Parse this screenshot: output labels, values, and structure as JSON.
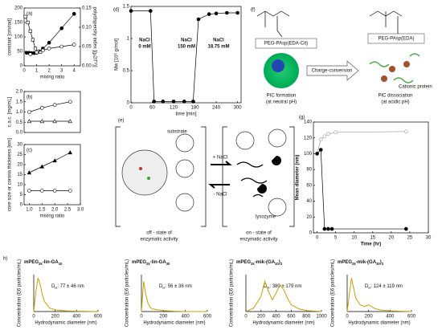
{
  "chart_data": [
    {
      "type": "line",
      "label": "(a)",
      "frame": true,
      "xlabel": "mixing ratio",
      "ylabel": "constant [cm/rad]",
      "y2label": "polydispersity index [(μ2/Γ²)]",
      "xlim": [
        0,
        4.5
      ],
      "xticks": [
        0,
        1,
        2,
        3,
        4
      ],
      "ylim": [
        0,
        200
      ],
      "yticks": [
        0,
        50,
        100,
        150,
        200
      ],
      "y2lim": [
        0,
        0.15
      ],
      "y2ticks": [
        {
          "value": 0,
          "label": "0.00"
        },
        0.05,
        {
          "value": 0.1,
          "label": "0.10"
        },
        0.15
      ],
      "series": [
        {
          "color": "#000000",
          "marker": "circle",
          "filled": true,
          "x": [
            0.2,
            0.4,
            0.6,
            0.8,
            1.0,
            1.2,
            1.5,
            2,
            3,
            4
          ],
          "values": [
            45,
            45,
            44,
            44,
            45,
            50,
            60,
            80,
            130,
            180
          ]
        },
        {
          "color": "#000000",
          "marker": "square",
          "filled": false,
          "x": [
            0.1,
            0.3,
            0.5,
            0.7,
            0.9,
            1.1,
            1.3
          ],
          "values": [
            170,
            150,
            120,
            90,
            60,
            50,
            48
          ]
        },
        {
          "color": "#000000",
          "marker": "circle",
          "filled": false,
          "axis": "y2",
          "x": [
            0.5,
            1,
            1.5,
            2,
            3,
            4
          ],
          "values": [
            0.03,
            0.035,
            0.04,
            0.045,
            0.05,
            0.055
          ]
        }
      ]
    },
    {
      "type": "line",
      "label": "(b)",
      "frame": true,
      "ylabel": "c.a.c. [mg/mL]",
      "xlim": [
        0.8,
        3.0
      ],
      "ylim": [
        0,
        2
      ],
      "yticks": [
        {
          "value": 0,
          "label": "0.0"
        },
        0.5,
        {
          "value": 1,
          "label": "1.0"
        },
        1.5,
        {
          "value": 2,
          "label": "2.0"
        }
      ],
      "series": [
        {
          "color": "#000000",
          "marker": "circle",
          "filled": false,
          "x": [
            1.0,
            1.5,
            2.0,
            2.6
          ],
          "values": [
            1.0,
            1.2,
            1.35,
            1.5
          ]
        },
        {
          "color": "#000000",
          "marker": "triangle",
          "filled": false,
          "x": [
            1.0,
            1.5,
            2.0,
            2.6
          ],
          "values": [
            0.55,
            0.55,
            0.55,
            0.55
          ]
        }
      ]
    },
    {
      "type": "line",
      "label": "(c)",
      "frame": true,
      "xlabel": "mixing ratio",
      "ylabel": "core size or corona thickness [nm]",
      "xlim": [
        0.8,
        3.0
      ],
      "xticks": [
        {
          "value": 1,
          "label": "1.0"
        },
        1.5,
        {
          "value": 2,
          "label": "2.0"
        },
        2.5,
        {
          "value": 3,
          "label": "3.0"
        }
      ],
      "ylim": [
        0,
        30
      ],
      "yticks": [
        0,
        5,
        10,
        15,
        20,
        25,
        30
      ],
      "series": [
        {
          "color": "#000000",
          "marker": "triangle",
          "filled": true,
          "x": [
            1.0,
            1.5,
            2.0,
            2.6
          ],
          "values": [
            16,
            19,
            22,
            26
          ]
        },
        {
          "color": "#000000",
          "marker": "circle",
          "filled": false,
          "x": [
            1.0,
            1.5,
            2.0,
            2.6
          ],
          "values": [
            7,
            7,
            7,
            7
          ]
        }
      ]
    },
    {
      "type": "line",
      "label": "(d)",
      "frame": true,
      "xlabel": "time [min]",
      "ylabel": "Mw [10⁶ g/mol]",
      "xlim": [
        0,
        310
      ],
      "xticks": [
        0,
        60,
        120,
        180,
        240,
        300
      ],
      "ylim": [
        0,
        1.5
      ],
      "yticks": [
        0,
        0.5,
        1,
        1.5
      ],
      "annotations": [
        [
          "NaCl",
          "0 mM"
        ],
        [
          "NaCl",
          "150 mM"
        ],
        [
          "NaCl",
          "18.75 mM"
        ]
      ],
      "series": [
        {
          "color": "#000000",
          "marker": "circle",
          "filled": true,
          "x": [
            0,
            55,
            65,
            90,
            120,
            150,
            175,
            190,
            220,
            240,
            270,
            300
          ],
          "values": [
            1.43,
            1.43,
            0.02,
            0.02,
            0.02,
            0.02,
            0.02,
            1.3,
            1.38,
            1.39,
            1.4,
            1.4
          ]
        }
      ]
    },
    {
      "type": "line",
      "label": "(g)",
      "frame": true,
      "xlabel": "Time (hr)",
      "ylabel": "Mean diameter (nm)",
      "xlim": [
        -1,
        30
      ],
      "xticks": [
        0,
        5,
        10,
        15,
        20,
        25,
        30
      ],
      "ylim": [
        0,
        140
      ],
      "yticks": [
        0,
        20,
        40,
        60,
        80,
        100,
        120,
        140
      ],
      "series": [
        {
          "color": "#999999",
          "marker": "circle",
          "filled": false,
          "x": [
            0,
            1,
            2,
            3,
            5,
            24
          ],
          "values": [
            100,
            118,
            122,
            125,
            127,
            128
          ]
        },
        {
          "color": "#000000",
          "marker": "circle",
          "filled": true,
          "x": [
            0,
            1,
            2,
            3,
            4,
            24
          ],
          "values": [
            100,
            105,
            5,
            5,
            5,
            5
          ]
        }
      ]
    },
    {
      "type": "line",
      "label": "h)",
      "frame": false,
      "xlabel": "Hydrodynamic diameter (nm)",
      "ylabel": "Concentration (E6 particles/mL)",
      "title": [
        {
          "text": "mPEG"
        },
        {
          "text": "2k",
          "sub": true
        },
        {
          "text": "-lin-GA"
        },
        {
          "text": "10",
          "sub": true
        }
      ],
      "annotation": [
        {
          "text": "D"
        },
        {
          "text": "H",
          "sub": true
        },
        {
          "text": ": 77 ± 46 nm"
        }
      ],
      "xlim": [
        0,
        600
      ],
      "xticks": [
        0,
        200,
        400,
        600
      ],
      "ylim": [
        0,
        1.1
      ],
      "series": [
        {
          "color": "#c8a200",
          "x": [
            0,
            20,
            40,
            60,
            80,
            100,
            150,
            200,
            300,
            400,
            600
          ],
          "values": [
            0,
            0.6,
            1.0,
            0.8,
            0.5,
            0.3,
            0.1,
            0.05,
            0.02,
            0.01,
            0
          ]
        }
      ]
    },
    {
      "type": "line",
      "frame": false,
      "xlabel": "Hydrodynamic diameter (nm)",
      "ylabel": "Concentration (E6 particles/mL)",
      "title": [
        {
          "text": "mPEG"
        },
        {
          "text": "2k",
          "sub": true
        },
        {
          "text": "-lin-GA"
        },
        {
          "text": "30",
          "sub": true
        }
      ],
      "annotation": [
        {
          "text": "D"
        },
        {
          "text": "H",
          "sub": true
        },
        {
          "text": ": 56 ± 36 nm"
        }
      ],
      "xlim": [
        0,
        600
      ],
      "xticks": [
        0,
        200,
        400,
        600
      ],
      "ylim": [
        0,
        1.1
      ],
      "series": [
        {
          "color": "#c8a200",
          "x": [
            0,
            20,
            40,
            60,
            80,
            100,
            150,
            200,
            300,
            400,
            600
          ],
          "values": [
            0,
            0.9,
            0.5,
            0.25,
            0.12,
            0.08,
            0.05,
            0.03,
            0.01,
            0,
            0
          ]
        }
      ]
    },
    {
      "type": "line",
      "frame": false,
      "xlabel": "Hydrodynamic diameter (nm)",
      "ylabel": "Concentration (E6 particles/mL)",
      "title": [
        {
          "text": "mPEG"
        },
        {
          "text": "2k",
          "sub": true
        },
        {
          "text": "-mik-(GA"
        },
        {
          "text": "10",
          "sub": true
        },
        {
          "text": ")"
        },
        {
          "text": "3",
          "sub": true
        }
      ],
      "annotation": [
        {
          "text": "D"
        },
        {
          "text": "H",
          "sub": true
        },
        {
          "text": ": 380 ± 179 nm"
        }
      ],
      "xlim": [
        0,
        1000
      ],
      "xticks": [
        0,
        200,
        400,
        600,
        800,
        1000
      ],
      "ylim": [
        0,
        1.1
      ],
      "series": [
        {
          "color": "#c8a200",
          "x": [
            0,
            100,
            200,
            250,
            300,
            350,
            400,
            450,
            500,
            550,
            600,
            700,
            800,
            1000
          ],
          "values": [
            0,
            0.1,
            0.45,
            0.9,
            0.6,
            0.35,
            0.55,
            0.8,
            0.65,
            0.4,
            0.2,
            0.08,
            0.03,
            0
          ]
        }
      ]
    },
    {
      "type": "line",
      "frame": false,
      "xlabel": "Hydrodynamic diameter (nm)",
      "ylabel": "Concentration (E6 particles/mL)",
      "title": [
        {
          "text": "mPEG"
        },
        {
          "text": "2k",
          "sub": true
        },
        {
          "text": "-mik-(GA"
        },
        {
          "text": "30",
          "sub": true
        },
        {
          "text": ")"
        },
        {
          "text": "3",
          "sub": true
        }
      ],
      "annotation": [
        {
          "text": "D"
        },
        {
          "text": "H",
          "sub": true
        },
        {
          "text": ": 124 ± 119 nm"
        }
      ],
      "xlim": [
        0,
        600
      ],
      "xticks": [
        0,
        200,
        400,
        600
      ],
      "ylim": [
        0,
        1.1
      ],
      "series": [
        {
          "color": "#c8a200",
          "x": [
            0,
            40,
            80,
            120,
            160,
            200,
            250,
            300,
            400,
            500,
            600
          ],
          "values": [
            0,
            1.0,
            0.4,
            0.2,
            0.15,
            0.2,
            0.1,
            0.05,
            0.02,
            0.01,
            0
          ]
        }
      ]
    }
  ],
  "diagrams": {
    "e": {
      "label": "(e)",
      "substrate": "substrate",
      "plus": "+ NaCl",
      "minus": "- NaCl",
      "lysozyme": "lysozyme",
      "off": [
        "off - state of",
        "enzymatic activity"
      ],
      "on": [
        "on - state of",
        "enzymatic activity"
      ]
    },
    "f": {
      "label": "(f)",
      "polymer1": "PEG-PAsp(EDA-Cit)",
      "polymer2": "PEG-PAsp(EDA)",
      "arrow": "Charge-conversion",
      "left": [
        "PIC formation",
        "(at neutral pH)"
      ],
      "right": [
        "PIC dissociation",
        "(at acidic pH)"
      ],
      "protein": "Cationic protein"
    }
  }
}
